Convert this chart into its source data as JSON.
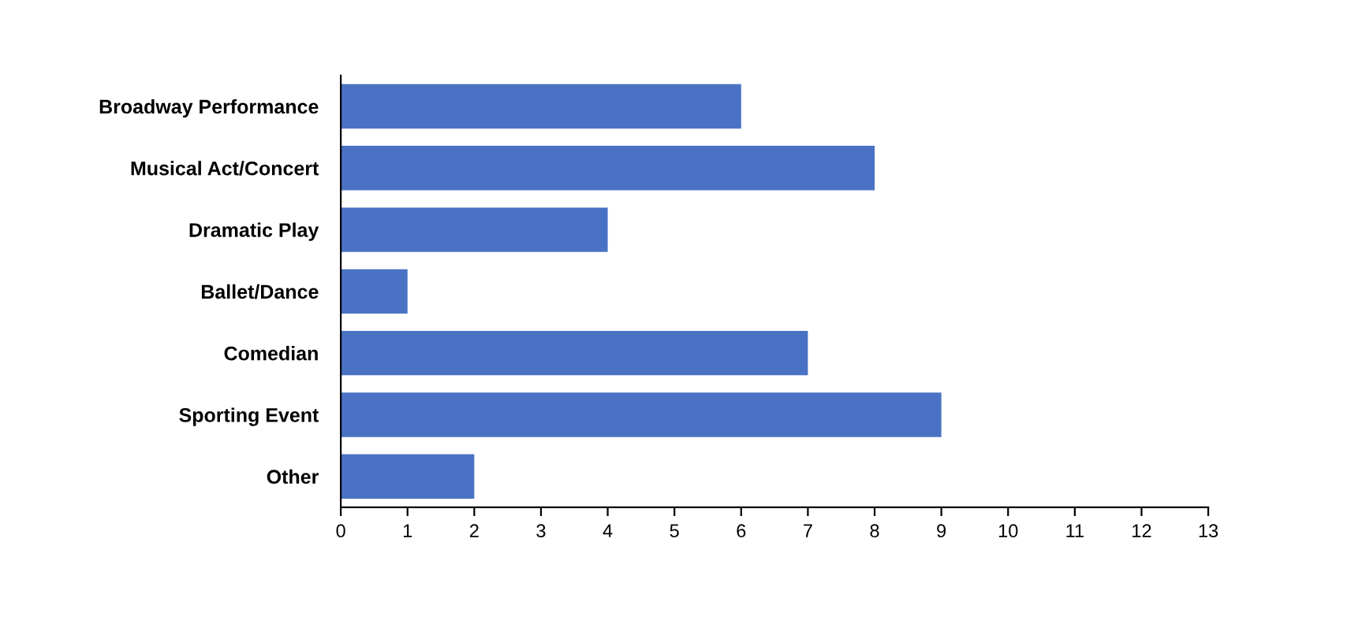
{
  "chart_data": {
    "type": "bar",
    "orientation": "horizontal",
    "categories": [
      "Broadway Performance",
      "Musical Act/Concert",
      "Dramatic Play",
      "Ballet/Dance",
      "Comedian",
      "Sporting Event",
      "Other"
    ],
    "values": [
      6,
      8,
      4,
      1,
      7,
      9,
      2
    ],
    "color": "#4a72c4",
    "xlim": [
      0,
      13
    ],
    "xticks": [
      0,
      1,
      2,
      3,
      4,
      5,
      6,
      7,
      8,
      9,
      10,
      11,
      12,
      13
    ],
    "grid": false
  }
}
